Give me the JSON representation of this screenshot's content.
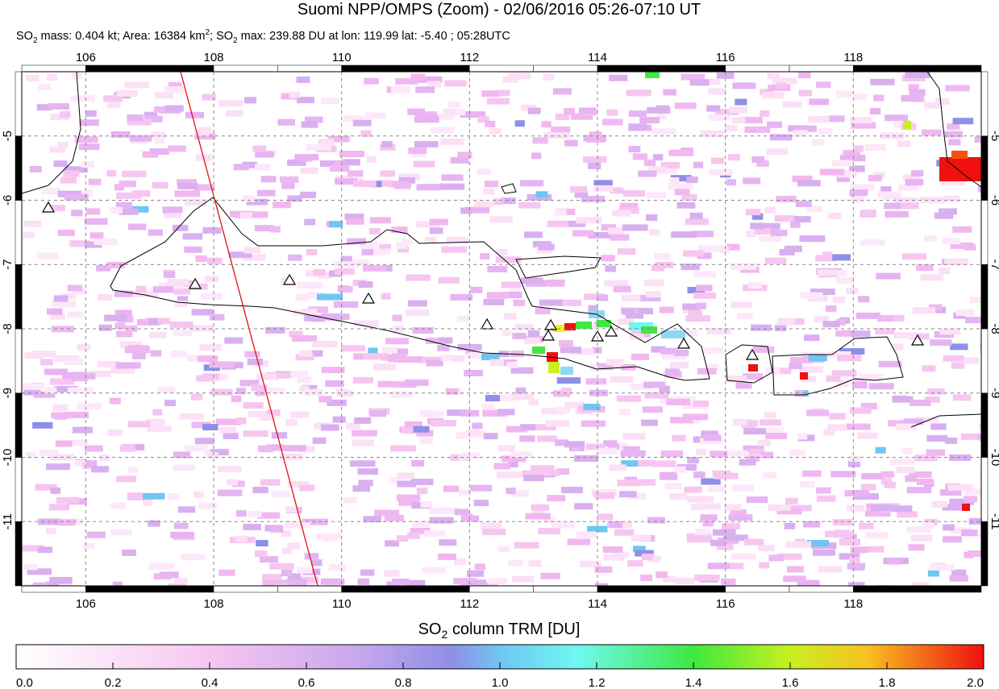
{
  "header": {
    "title": "Suomi NPP/OMPS (Zoom) - 02/06/2016 05:26-07:10 UT",
    "subtitle": [
      "SO",
      "2",
      " mass: 0.404 kt; Area: 16384 km",
      "2",
      "; SO",
      "2",
      " max: 239.88 DU at lon: 119.99 lat: -5.40 ; 05:28UTC"
    ]
  },
  "map": {
    "lon_range": [
      105,
      120
    ],
    "lat_range": [
      -4,
      -12
    ],
    "lon_ticks": [
      106,
      108,
      110,
      112,
      114,
      116,
      118
    ],
    "lat_ticks": [
      -5,
      -6,
      -7,
      -8,
      -9,
      -10,
      -11
    ]
  },
  "colorbar": {
    "label": [
      "SO",
      "2",
      " column TRM [DU]"
    ],
    "range": [
      0,
      2
    ],
    "ticks": [
      {
        "value": 0,
        "label": "0.0"
      },
      {
        "value": 0.2,
        "label": "0.2"
      },
      {
        "value": 0.4,
        "label": "0.4"
      },
      {
        "value": 0.6,
        "label": "0.6"
      },
      {
        "value": 0.8,
        "label": "0.8"
      },
      {
        "value": 1,
        "label": "1.0"
      },
      {
        "value": 1.2,
        "label": "1.2"
      },
      {
        "value": 1.4,
        "label": "1.4"
      },
      {
        "value": 1.6,
        "label": "1.6"
      },
      {
        "value": 1.8,
        "label": "1.8"
      },
      {
        "value": 2,
        "label": "2.0"
      }
    ]
  }
}
